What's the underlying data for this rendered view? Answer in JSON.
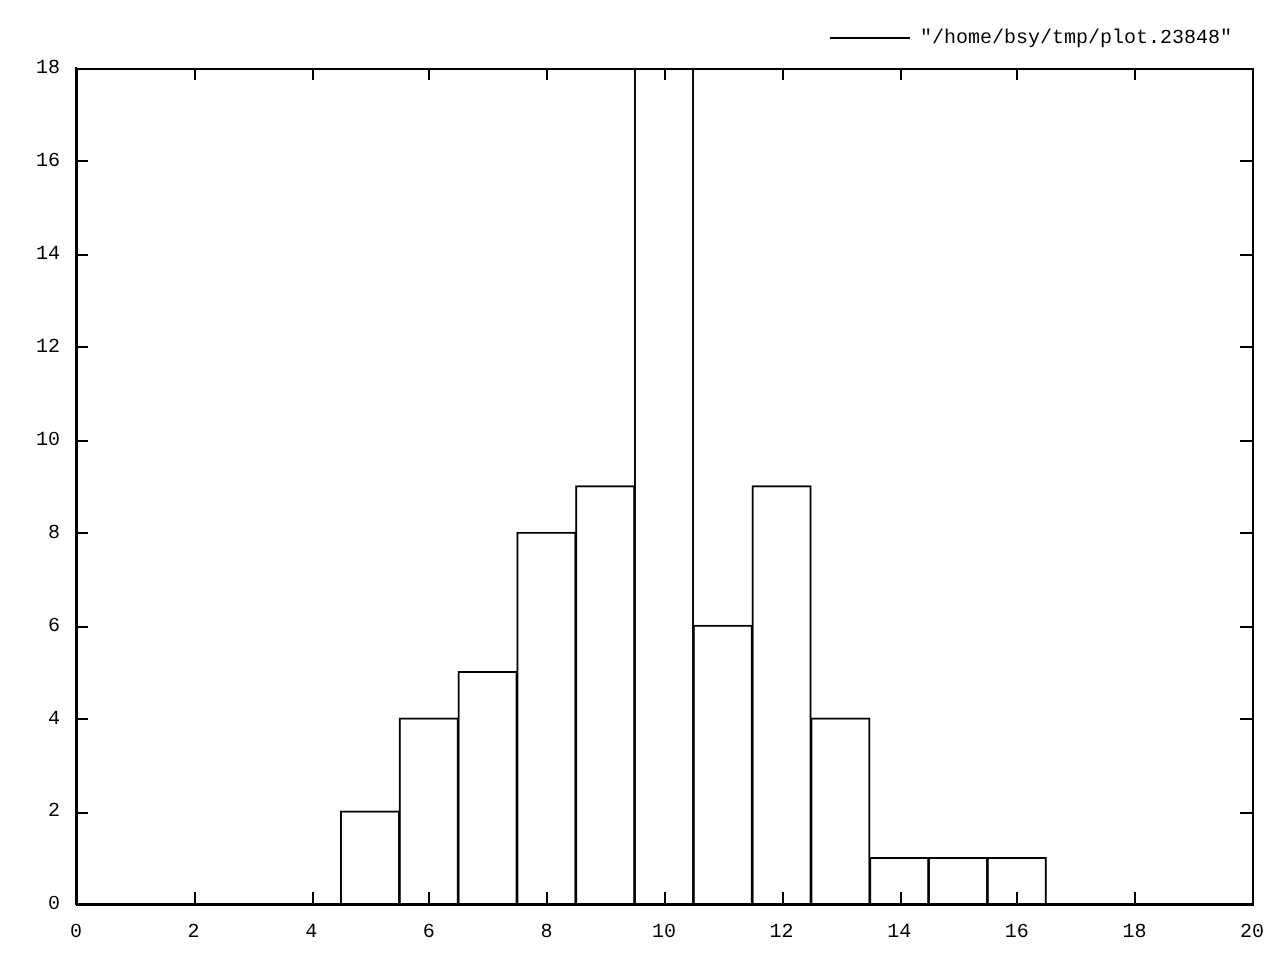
{
  "chart_data": {
    "type": "histogram",
    "bins": [
      4.5,
      5.5,
      6.5,
      7.5,
      8.5,
      9.5,
      10.5,
      11.5,
      12.5,
      13.5,
      14.5,
      15.5,
      16.5
    ],
    "series": [
      {
        "name": "\"/home/bsy/tmp/plot.23848\"",
        "color": "#ffffff",
        "values": [
          2,
          4,
          5,
          8,
          9,
          18,
          6,
          9,
          4,
          1,
          1,
          1
        ]
      }
    ],
    "xlim": [
      0,
      20
    ],
    "xticks": [
      0,
      2,
      4,
      6,
      8,
      10,
      12,
      14,
      16,
      18,
      20
    ],
    "ylim": [
      0,
      18
    ],
    "yticks": [
      0,
      2,
      4,
      6,
      8,
      10,
      12,
      14,
      16,
      18
    ],
    "grid": false,
    "legend": "top right"
  }
}
